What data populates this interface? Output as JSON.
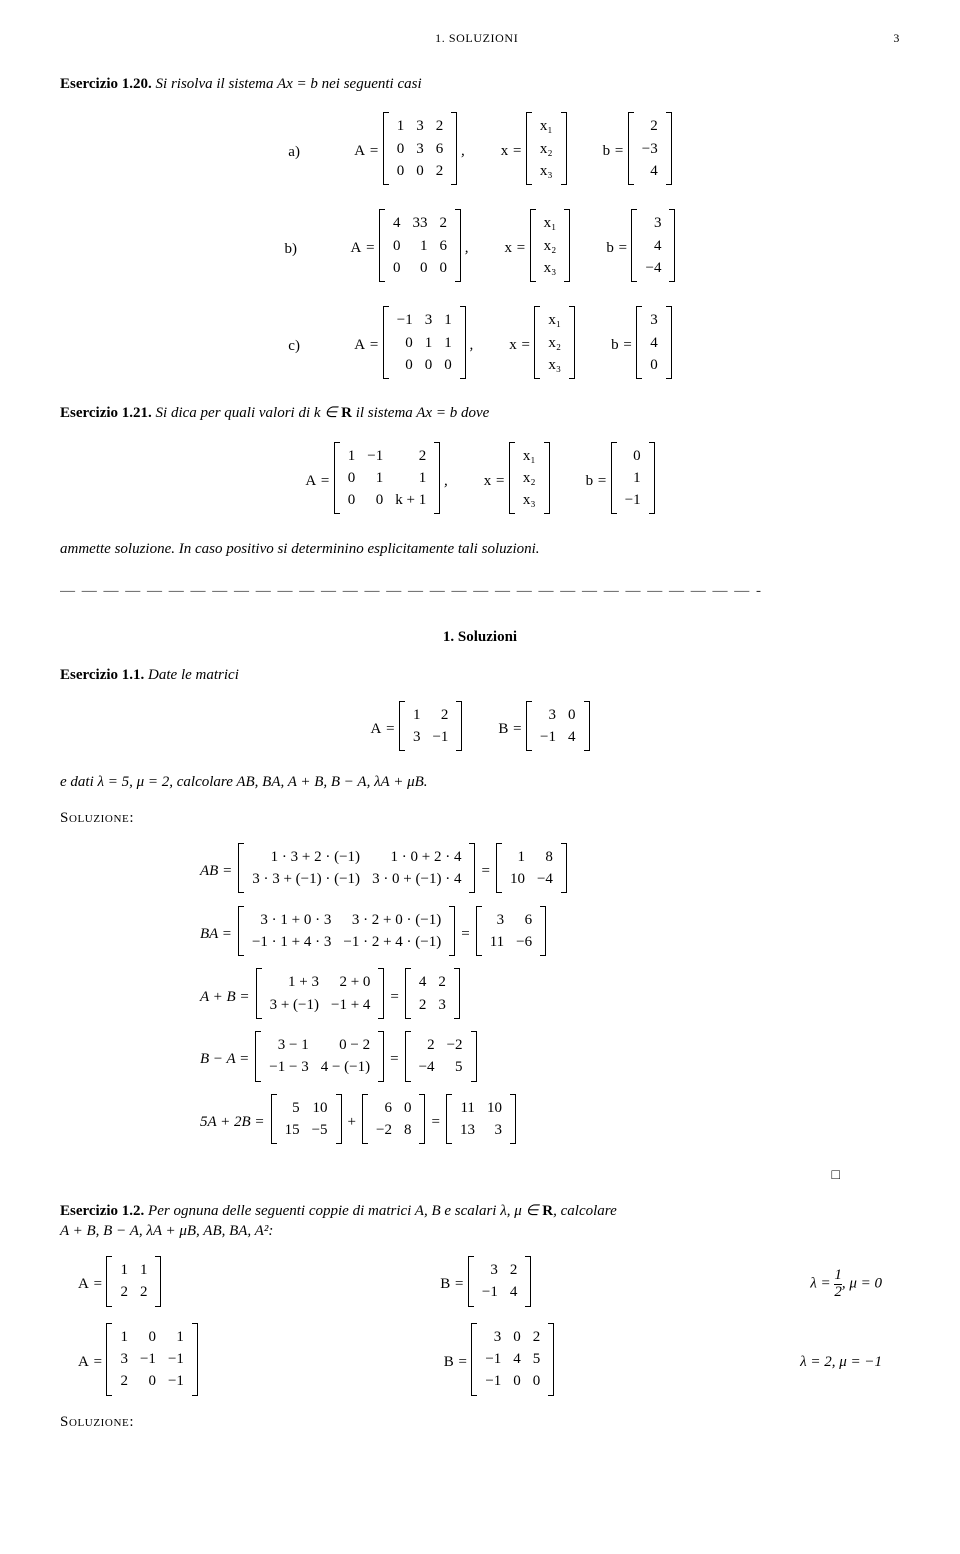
{
  "header": {
    "title": "1. SOLUZIONI",
    "page": "3"
  },
  "ex120": {
    "label": "Esercizio 1.20.",
    "intro": "Si risolva il sistema Ax = b nei seguenti casi",
    "cases": {
      "a": {
        "A": [
          [
            "1",
            "3",
            "2"
          ],
          [
            "0",
            "3",
            "6"
          ],
          [
            "0",
            "0",
            "2"
          ]
        ],
        "x": [
          [
            "x₁"
          ],
          [
            "x₂"
          ],
          [
            "x₃"
          ]
        ],
        "b": [
          [
            "2"
          ],
          [
            "−3"
          ],
          [
            "4"
          ]
        ]
      },
      "b": {
        "A": [
          [
            "4",
            "33",
            "2"
          ],
          [
            "0",
            "1",
            "6"
          ],
          [
            "0",
            "0",
            "0"
          ]
        ],
        "x": [
          [
            "x₁"
          ],
          [
            "x₂"
          ],
          [
            "x₃"
          ]
        ],
        "b": [
          [
            "3"
          ],
          [
            "4"
          ],
          [
            "−4"
          ]
        ]
      },
      "c": {
        "A": [
          [
            "−1",
            "3",
            "1"
          ],
          [
            "0",
            "1",
            "1"
          ],
          [
            "0",
            "0",
            "0"
          ]
        ],
        "x": [
          [
            "x₁"
          ],
          [
            "x₂"
          ],
          [
            "x₃"
          ]
        ],
        "b": [
          [
            "3"
          ],
          [
            "4"
          ],
          [
            "0"
          ]
        ]
      }
    }
  },
  "ex121": {
    "label": "Esercizio 1.21.",
    "intro_a": "Si dica per quali valori di k ∈ ",
    "intro_b": " il sistema Ax = b dove",
    "A": [
      [
        "1",
        "−1",
        "2"
      ],
      [
        "0",
        "1",
        "1"
      ],
      [
        "0",
        "0",
        "k + 1"
      ]
    ],
    "x": [
      [
        "x₁"
      ],
      [
        "x₂"
      ],
      [
        "x₃"
      ]
    ],
    "b": [
      [
        "0"
      ],
      [
        "1"
      ],
      [
        "−1"
      ]
    ],
    "tail": "ammette soluzione. In caso positivo si determinino esplicitamente tali soluzioni."
  },
  "sec_title": "1. Soluzioni",
  "ex11": {
    "label": "Esercizio 1.1.",
    "intro": "Date le matrici",
    "A": [
      [
        "1",
        "2"
      ],
      [
        "3",
        "−1"
      ]
    ],
    "B": [
      [
        "3",
        "0"
      ],
      [
        "−1",
        "4"
      ]
    ],
    "given": "e dati λ = 5, μ = 2, calcolare AB, BA, A + B, B − A, λA + μB.",
    "sol_label": "Soluzione:",
    "calc": {
      "AB_left": [
        [
          "1 · 3 + 2 · (−1)",
          "1 · 0 + 2 · 4"
        ],
        [
          "3 · 3 + (−1) · (−1)",
          "3 · 0 + (−1) · 4"
        ]
      ],
      "AB_right": [
        [
          "1",
          "8"
        ],
        [
          "10",
          "−4"
        ]
      ],
      "BA_left": [
        [
          "3 · 1 + 0 · 3",
          "3 · 2 + 0 · (−1)"
        ],
        [
          "−1 · 1 + 4 · 3",
          "−1 · 2 + 4 · (−1)"
        ]
      ],
      "BA_right": [
        [
          "3",
          "6"
        ],
        [
          "11",
          "−6"
        ]
      ],
      "ApB_left": [
        [
          "1 + 3",
          "2 + 0"
        ],
        [
          "3 + (−1)",
          "−1 + 4"
        ]
      ],
      "ApB_right": [
        [
          "4",
          "2"
        ],
        [
          "2",
          "3"
        ]
      ],
      "BmA_left": [
        [
          "3 − 1",
          "0 − 2"
        ],
        [
          "−1 − 3",
          "4 − (−1)"
        ]
      ],
      "BmA_right": [
        [
          "2",
          "−2"
        ],
        [
          "−4",
          "5"
        ]
      ],
      "five_two_A": [
        [
          "5",
          "10"
        ],
        [
          "15",
          "−5"
        ]
      ],
      "five_two_B": [
        [
          "6",
          "0"
        ],
        [
          "−2",
          "8"
        ]
      ],
      "five_two_res": [
        [
          "11",
          "10"
        ],
        [
          "13",
          "3"
        ]
      ]
    },
    "qed": "□"
  },
  "ex12": {
    "label": "Esercizio 1.2.",
    "intro_a": "Per ognuna delle seguenti coppie di matrici A, B e scalari λ, μ ∈ ",
    "intro_b": ", calcolare",
    "calc_list": "A + B, B − A, λA + μB, AB, BA, A²:",
    "row1": {
      "A": [
        [
          "1",
          "1"
        ],
        [
          "2",
          "2"
        ]
      ],
      "B": [
        [
          "3",
          "2"
        ],
        [
          "−1",
          "4"
        ]
      ],
      "scal_a": "λ = ",
      "scal_frac_top": "1",
      "scal_frac_bot": "2",
      "scal_b": ", μ = 0"
    },
    "row2": {
      "A": [
        [
          "1",
          "0",
          "1"
        ],
        [
          "3",
          "−1",
          "−1"
        ],
        [
          "2",
          "0",
          "−1"
        ]
      ],
      "B": [
        [
          "3",
          "0",
          "2"
        ],
        [
          "−1",
          "4",
          "5"
        ],
        [
          "−1",
          "0",
          "0"
        ]
      ],
      "scal": "λ = 2, μ = −1"
    },
    "sol_label": "Soluzione:"
  }
}
